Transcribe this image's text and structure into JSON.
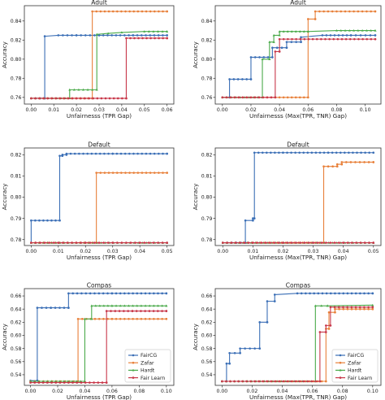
{
  "colors": {
    "FairCG": "#3b6fb6",
    "Zafar": "#e8803a",
    "Hardt": "#4aaa4a",
    "Fair Learn": "#c8384a"
  },
  "chart_data": [
    {
      "type": "line",
      "title": "Adult",
      "xlabel": "Unfairnesss (TPR Gap)",
      "ylabel": "Accuracy",
      "xlim": [
        -0.003,
        0.063
      ],
      "ylim": [
        0.753,
        0.856
      ],
      "xticks": [
        "0.00",
        "0.01",
        "0.02",
        "0.03",
        "0.04",
        "0.05",
        "0.06"
      ],
      "yticks": [
        "0.76",
        "0.78",
        "0.80",
        "0.82",
        "0.84"
      ],
      "xtick_values": [
        0,
        0.01,
        0.02,
        0.03,
        0.04,
        0.05,
        0.06
      ],
      "ytick_values": [
        0.76,
        0.78,
        0.8,
        0.82,
        0.84
      ],
      "legend": false,
      "series": [
        {
          "name": "FairCG",
          "x": [
            0.0,
            0.006,
            0.006,
            0.012,
            0.02,
            0.03,
            0.045,
            0.06
          ],
          "y": [
            0.759,
            0.759,
            0.824,
            0.825,
            0.825,
            0.825,
            0.825,
            0.825
          ]
        },
        {
          "name": "Zafar",
          "x": [
            0.0,
            0.027,
            0.027,
            0.06
          ],
          "y": [
            0.759,
            0.759,
            0.85,
            0.85
          ]
        },
        {
          "name": "Hardt",
          "x": [
            0.0,
            0.017,
            0.017,
            0.029,
            0.029,
            0.034,
            0.04,
            0.05,
            0.06
          ],
          "y": [
            0.759,
            0.759,
            0.768,
            0.768,
            0.826,
            0.827,
            0.828,
            0.829,
            0.829
          ]
        },
        {
          "name": "Fair Learn",
          "x": [
            0.0,
            0.042,
            0.042,
            0.06
          ],
          "y": [
            0.759,
            0.759,
            0.822,
            0.822
          ]
        }
      ]
    },
    {
      "type": "line",
      "title": "Adult",
      "xlabel": "Unfairnesss (Max(TPR, TNR) Gap)",
      "ylabel": "Accuracy",
      "xlim": [
        -0.005,
        0.111
      ],
      "ylim": [
        0.753,
        0.856
      ],
      "xticks": [
        "0.00",
        "0.02",
        "0.04",
        "0.06",
        "0.08",
        "0.10"
      ],
      "yticks": [
        "0.76",
        "0.78",
        "0.80",
        "0.82",
        "0.84"
      ],
      "xtick_values": [
        0,
        0.02,
        0.04,
        0.06,
        0.08,
        0.1
      ],
      "ytick_values": [
        0.76,
        0.78,
        0.8,
        0.82,
        0.84
      ],
      "legend": false,
      "series": [
        {
          "name": "FairCG",
          "x": [
            0.0,
            0.005,
            0.005,
            0.02,
            0.02,
            0.035,
            0.035,
            0.045,
            0.045,
            0.055,
            0.055,
            0.07,
            0.09,
            0.107
          ],
          "y": [
            0.76,
            0.76,
            0.779,
            0.779,
            0.802,
            0.802,
            0.812,
            0.812,
            0.818,
            0.818,
            0.823,
            0.825,
            0.825,
            0.825
          ]
        },
        {
          "name": "Zafar",
          "x": [
            0.0,
            0.06,
            0.06,
            0.065,
            0.065,
            0.107
          ],
          "y": [
            0.76,
            0.76,
            0.842,
            0.842,
            0.85,
            0.85
          ]
        },
        {
          "name": "Hardt",
          "x": [
            0.0,
            0.028,
            0.028,
            0.033,
            0.033,
            0.036,
            0.036,
            0.04,
            0.04,
            0.06,
            0.08,
            0.107
          ],
          "y": [
            0.76,
            0.76,
            0.8,
            0.8,
            0.818,
            0.818,
            0.825,
            0.825,
            0.829,
            0.829,
            0.83,
            0.83
          ]
        },
        {
          "name": "Fair Learn",
          "x": [
            0.0,
            0.037,
            0.037,
            0.04,
            0.04,
            0.107
          ],
          "y": [
            0.76,
            0.76,
            0.808,
            0.808,
            0.821,
            0.821
          ]
        }
      ]
    },
    {
      "type": "line",
      "title": "Default",
      "xlabel": "Unfairnesss (TPR Gap)",
      "ylabel": "Accuracy",
      "xlim": [
        -0.0025,
        0.0525
      ],
      "ylim": [
        0.7772,
        0.8232
      ],
      "xticks": [
        "0.00",
        "0.01",
        "0.02",
        "0.03",
        "0.04",
        "0.05"
      ],
      "yticks": [
        "0.78",
        "0.79",
        "0.80",
        "0.81",
        "0.82"
      ],
      "xtick_values": [
        0,
        0.01,
        0.02,
        0.03,
        0.04,
        0.05
      ],
      "ytick_values": [
        0.78,
        0.79,
        0.8,
        0.81,
        0.82
      ],
      "legend": false,
      "series": [
        {
          "name": "FairCG",
          "x": [
            0.0,
            0.0,
            0.0105,
            0.0105,
            0.0115,
            0.0115,
            0.013,
            0.013,
            0.03,
            0.05
          ],
          "y": [
            0.7785,
            0.789,
            0.789,
            0.8195,
            0.8195,
            0.82,
            0.82,
            0.8205,
            0.8205,
            0.8205
          ]
        },
        {
          "name": "Zafar",
          "x": [
            0.0,
            0.024,
            0.024,
            0.05
          ],
          "y": [
            0.7785,
            0.7785,
            0.8115,
            0.8115
          ]
        },
        {
          "name": "Hardt",
          "x": [
            0.0,
            0.05
          ],
          "y": [
            0.7785,
            0.7785
          ]
        },
        {
          "name": "Fair Learn",
          "x": [
            0.0,
            0.01,
            0.02,
            0.03,
            0.04,
            0.05
          ],
          "y": [
            0.7785,
            0.7785,
            0.7785,
            0.7785,
            0.7785,
            0.7785
          ]
        }
      ]
    },
    {
      "type": "line",
      "title": "Default",
      "xlabel": "Unfairnesss (Max(TPR, TNR) Gap)",
      "ylabel": "Accuracy",
      "xlim": [
        -0.0025,
        0.0525
      ],
      "ylim": [
        0.7772,
        0.8232
      ],
      "xticks": [
        "0.00",
        "0.01",
        "0.02",
        "0.03",
        "0.04",
        "0.05"
      ],
      "yticks": [
        "0.78",
        "0.79",
        "0.80",
        "0.81",
        "0.82"
      ],
      "xtick_values": [
        0,
        0.01,
        0.02,
        0.03,
        0.04,
        0.05
      ],
      "ytick_values": [
        0.78,
        0.79,
        0.8,
        0.81,
        0.82
      ],
      "legend": false,
      "series": [
        {
          "name": "FairCG",
          "x": [
            0.0,
            0.0075,
            0.0075,
            0.01,
            0.01,
            0.0105,
            0.0105,
            0.02,
            0.035,
            0.05
          ],
          "y": [
            0.7785,
            0.7785,
            0.789,
            0.789,
            0.79,
            0.79,
            0.821,
            0.821,
            0.821,
            0.821
          ]
        },
        {
          "name": "Zafar",
          "x": [
            0.0,
            0.0335,
            0.0335,
            0.038,
            0.038,
            0.0395,
            0.0395,
            0.05
          ],
          "y": [
            0.7785,
            0.7785,
            0.8145,
            0.8145,
            0.8155,
            0.8155,
            0.8165,
            0.8165
          ]
        },
        {
          "name": "Hardt",
          "x": [
            0.0,
            0.05
          ],
          "y": [
            0.7785,
            0.7785
          ]
        },
        {
          "name": "Fair Learn",
          "x": [
            0.0,
            0.01,
            0.02,
            0.03,
            0.04,
            0.05
          ],
          "y": [
            0.7785,
            0.7785,
            0.7785,
            0.7785,
            0.7785,
            0.7785
          ]
        }
      ]
    },
    {
      "type": "line",
      "title": "Compas",
      "xlabel": "Unfairnesss (TPR Gap)",
      "ylabel": "Accuracy",
      "xlim": [
        -0.0045,
        0.1055
      ],
      "ylim": [
        0.5238,
        0.6712
      ],
      "xticks": [
        "0.00",
        "0.02",
        "0.04",
        "0.06",
        "0.08",
        "0.10"
      ],
      "yticks": [
        "0.54",
        "0.56",
        "0.58",
        "0.60",
        "0.62",
        "0.64",
        "0.66"
      ],
      "xtick_values": [
        0,
        0.02,
        0.04,
        0.06,
        0.08,
        0.1
      ],
      "ytick_values": [
        0.54,
        0.56,
        0.58,
        0.6,
        0.62,
        0.64,
        0.66
      ],
      "legend": true,
      "legend_position": "lower-right",
      "series": [
        {
          "name": "FairCG",
          "x": [
            0.0,
            0.005,
            0.005,
            0.015,
            0.028,
            0.028,
            0.06,
            0.1
          ],
          "y": [
            0.531,
            0.531,
            0.642,
            0.642,
            0.642,
            0.664,
            0.664,
            0.664
          ]
        },
        {
          "name": "Zafar",
          "x": [
            0.0,
            0.035,
            0.035,
            0.06,
            0.1
          ],
          "y": [
            0.53,
            0.53,
            0.625,
            0.625,
            0.625
          ]
        },
        {
          "name": "Hardt",
          "x": [
            0.0,
            0.04,
            0.04,
            0.045,
            0.045,
            0.06,
            0.1
          ],
          "y": [
            0.53,
            0.53,
            0.625,
            0.625,
            0.645,
            0.645,
            0.645
          ]
        },
        {
          "name": "Fair Learn",
          "x": [
            0.0,
            0.056,
            0.056,
            0.075,
            0.1
          ],
          "y": [
            0.528,
            0.528,
            0.637,
            0.637,
            0.637
          ]
        }
      ]
    },
    {
      "type": "line",
      "title": "Compas",
      "xlabel": "Unfairnesss (Max(TPR, TNR) Gap)",
      "ylabel": "Accuracy",
      "xlim": [
        -0.0045,
        0.1055
      ],
      "ylim": [
        0.5238,
        0.6712
      ],
      "xticks": [
        "0.00",
        "0.02",
        "0.04",
        "0.06",
        "0.08",
        "0.10"
      ],
      "yticks": [
        "0.54",
        "0.56",
        "0.58",
        "0.60",
        "0.62",
        "0.64",
        "0.66"
      ],
      "xtick_values": [
        0,
        0.02,
        0.04,
        0.06,
        0.08,
        0.1
      ],
      "ytick_values": [
        0.54,
        0.56,
        0.58,
        0.6,
        0.62,
        0.64,
        0.66
      ],
      "legend": true,
      "legend_position": "lower-right",
      "series": [
        {
          "name": "FairCG",
          "x": [
            0.0,
            0.003,
            0.003,
            0.005,
            0.005,
            0.012,
            0.012,
            0.025,
            0.025,
            0.03,
            0.03,
            0.035,
            0.035,
            0.05,
            0.1
          ],
          "y": [
            0.53,
            0.53,
            0.557,
            0.557,
            0.573,
            0.573,
            0.58,
            0.58,
            0.62,
            0.62,
            0.652,
            0.652,
            0.662,
            0.664,
            0.664
          ]
        },
        {
          "name": "Zafar",
          "x": [
            0.0,
            0.069,
            0.069,
            0.071,
            0.071,
            0.075,
            0.075,
            0.1
          ],
          "y": [
            0.53,
            0.53,
            0.61,
            0.61,
            0.635,
            0.635,
            0.64,
            0.64
          ]
        },
        {
          "name": "Hardt",
          "x": [
            0.0,
            0.062,
            0.062,
            0.07,
            0.1
          ],
          "y": [
            0.53,
            0.53,
            0.645,
            0.645,
            0.646
          ]
        },
        {
          "name": "Fair Learn",
          "x": [
            0.0,
            0.065,
            0.065,
            0.069,
            0.069,
            0.072,
            0.072,
            0.1
          ],
          "y": [
            0.53,
            0.53,
            0.605,
            0.605,
            0.615,
            0.615,
            0.643,
            0.643
          ]
        }
      ]
    }
  ]
}
